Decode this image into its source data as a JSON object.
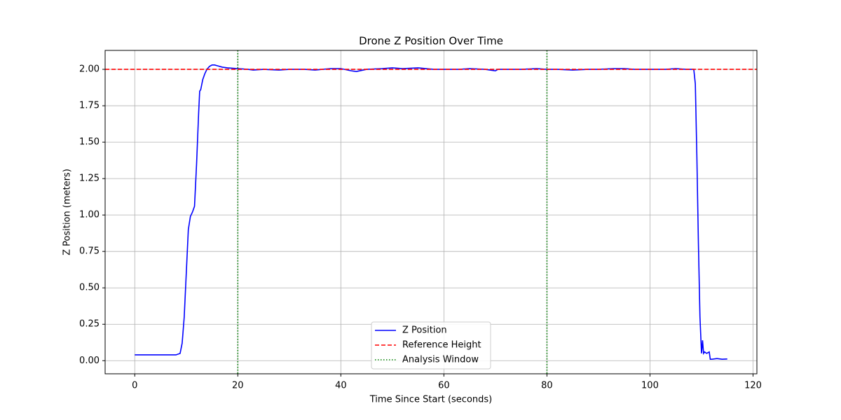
{
  "chart_data": {
    "type": "line",
    "title": "Drone Z Position Over Time",
    "x_label": "Time Since Start (seconds)",
    "y_label": "Z Position (meters)",
    "x": [
      0,
      2,
      4,
      6,
      8,
      8.8,
      9.2,
      9.6,
      10,
      10.4,
      10.8,
      11.2,
      11.6,
      12,
      12.4,
      12.6,
      12.8,
      13.2,
      13.6,
      14,
      14.5,
      15,
      15.5,
      16,
      17,
      18,
      20,
      22,
      23,
      25,
      28,
      30,
      33,
      35,
      38,
      40,
      42,
      43,
      45,
      48,
      50,
      52,
      55,
      58,
      60,
      63,
      65,
      68,
      70,
      70.5,
      72,
      75,
      78,
      80,
      82,
      85,
      88,
      90,
      93,
      95,
      97,
      100,
      103,
      105,
      107,
      108.5,
      108.8,
      109.1,
      109.4,
      109.7,
      110,
      110.2,
      110.4,
      110.6,
      111,
      111.5,
      111.7,
      112,
      113,
      114,
      115
    ],
    "series": [
      {
        "name": "Z Position",
        "color": "#0000ff",
        "values": [
          0.04,
          0.04,
          0.04,
          0.04,
          0.04,
          0.05,
          0.12,
          0.3,
          0.6,
          0.9,
          0.99,
          1.02,
          1.06,
          1.35,
          1.7,
          1.85,
          1.86,
          1.93,
          1.97,
          2.0,
          2.02,
          2.03,
          2.03,
          2.025,
          2.015,
          2.01,
          2.005,
          2.0,
          1.995,
          2.0,
          1.995,
          2.0,
          2.0,
          1.995,
          2.005,
          2.005,
          1.99,
          1.985,
          2.0,
          2.005,
          2.01,
          2.005,
          2.01,
          2.0,
          2.0,
          2.0,
          2.005,
          2.0,
          1.99,
          2.0,
          2.0,
          2.0,
          2.005,
          2.0,
          2.0,
          1.995,
          2.0,
          2.0,
          2.005,
          2.005,
          2.0,
          2.0,
          2.0,
          2.005,
          2.0,
          2.0,
          1.9,
          1.4,
          0.8,
          0.3,
          0.05,
          0.14,
          0.05,
          0.06,
          0.05,
          0.06,
          0.01,
          0.01,
          0.015,
          0.01,
          0.012
        ]
      }
    ],
    "reference_line": {
      "name": "Reference Height",
      "color": "#ff0000",
      "y": 2.0
    },
    "window_lines": {
      "name": "Analysis Window",
      "color": "#008000",
      "x": [
        20,
        80
      ]
    },
    "xlim": [
      -5.75,
      120.75
    ],
    "ylim": [
      -0.09,
      2.13
    ],
    "xticks": [
      0,
      20,
      40,
      60,
      80,
      100,
      120
    ],
    "yticks": [
      {
        "value": 0,
        "label": "0.00"
      },
      {
        "value": 0.25,
        "label": "0.25"
      },
      {
        "value": 0.5,
        "label": "0.50"
      },
      {
        "value": 0.75,
        "label": "0.75"
      },
      {
        "value": 1.0,
        "label": "1.00"
      },
      {
        "value": 1.25,
        "label": "1.25"
      },
      {
        "value": 1.5,
        "label": "1.50"
      },
      {
        "value": 1.75,
        "label": "1.75"
      },
      {
        "value": 2.0,
        "label": "2.00"
      }
    ],
    "grid": true,
    "legend": "lower center"
  }
}
